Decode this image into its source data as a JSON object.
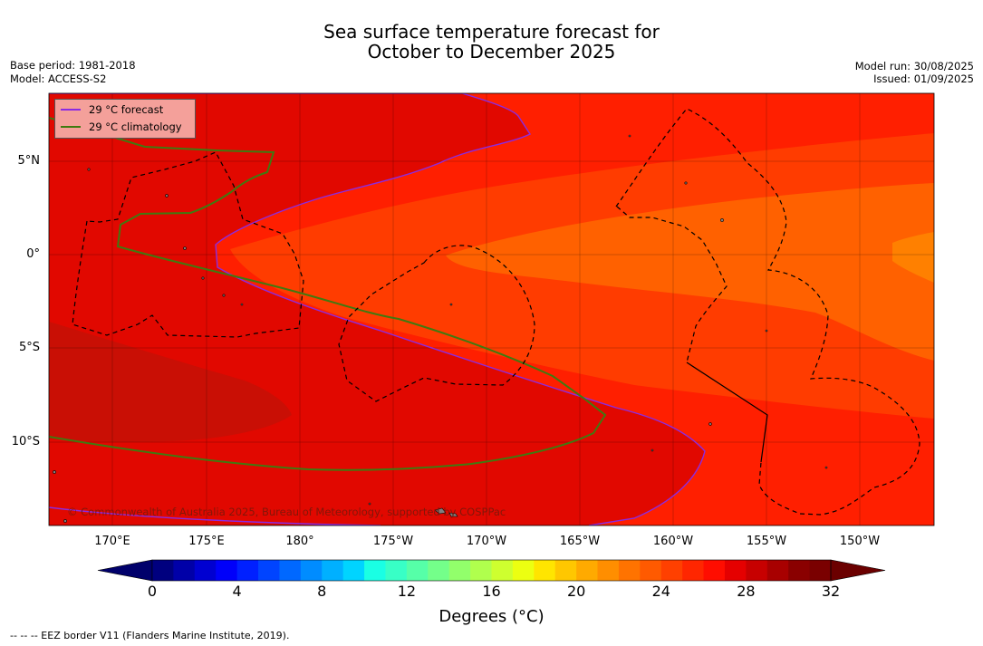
{
  "title_line1": "Sea surface temperature forecast for",
  "title_line2": "October to December 2025",
  "meta_left": {
    "base_period": "Base period: 1981-2018",
    "model": "Model: ACCESS-S2"
  },
  "meta_right": {
    "model_run": "Model run: 30/08/2025",
    "issued": "Issued: 01/09/2025"
  },
  "legend": {
    "forecast": {
      "label": "29 °C  forecast",
      "color": "#8a2be2"
    },
    "climatology": {
      "label": "29 °C  climatology",
      "color": "#3f7a10"
    }
  },
  "copyright": "© Commonwealth of Australia 2025, Bureau of Meteorology, supported by COSPPac",
  "lat_labels": [
    "5°N",
    "0°",
    "5°S",
    "10°S"
  ],
  "lon_labels": [
    "170°E",
    "175°E",
    "180°",
    "175°W",
    "170°W",
    "165°W",
    "160°W",
    "155°W",
    "150°W"
  ],
  "colorbar": {
    "ticks": [
      "0",
      "4",
      "8",
      "12",
      "16",
      "20",
      "24",
      "28",
      "32"
    ],
    "label": "Degrees ($^\\circ$C)",
    "label_display": "Degrees (°C)",
    "min": 0,
    "max": 32,
    "step": 1,
    "colors": [
      "#00007f",
      "#0000a8",
      "#0000d1",
      "#0000fa",
      "#0020ff",
      "#0044ff",
      "#0068ff",
      "#008cff",
      "#00b0ff",
      "#00d4ff",
      "#1affe4",
      "#38ffc6",
      "#56ffa8",
      "#74ff8a",
      "#92ff6b",
      "#b0ff4d",
      "#ceff2f",
      "#ecff11",
      "#ffe500",
      "#ffc700",
      "#ffaa00",
      "#ff8e00",
      "#ff7300",
      "#ff5a00",
      "#ff4000",
      "#ff2600",
      "#ff0d00",
      "#e50000",
      "#c70000",
      "#a80000",
      "#8a0000",
      "#7a0000"
    ]
  },
  "footnote": "--  --  -- EEZ border V11 (Flanders Marine Institute, 2019).",
  "colors": {
    "sst_27_28": "#ff6100",
    "sst_28_29": "#ff3c00",
    "sst_29_30": "#ff1f00",
    "sst_30_31": "#e10800",
    "sst_31_32": "#c90f05",
    "eez_border": "#000000"
  }
}
